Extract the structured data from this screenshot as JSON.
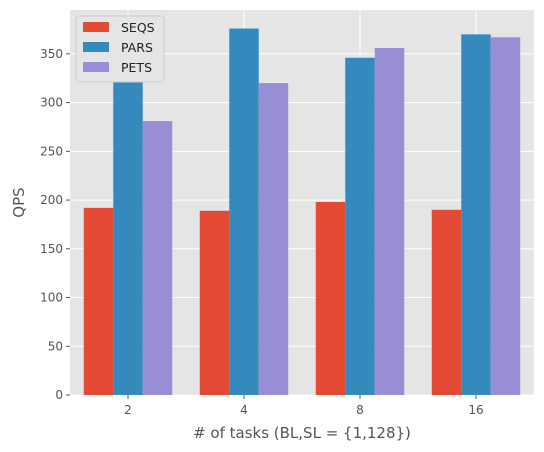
{
  "chart_data": {
    "type": "bar",
    "title": "",
    "xlabel": "# of tasks (BL,SL = {1,128})",
    "ylabel": "QPS",
    "categories": [
      "2",
      "4",
      "8",
      "16"
    ],
    "series": [
      {
        "name": "SEQS",
        "color": "#E24A33",
        "values": [
          192,
          189,
          198,
          190
        ]
      },
      {
        "name": "PARS",
        "color": "#348ABD",
        "values": [
          321,
          376,
          346,
          370
        ]
      },
      {
        "name": "PETS",
        "color": "#988ED5",
        "values": [
          281,
          320,
          356,
          367
        ]
      }
    ],
    "ylim": [
      0,
      395
    ],
    "yticks": [
      0,
      50,
      100,
      150,
      200,
      250,
      300,
      350
    ],
    "grid": true,
    "legend_position": "top-left",
    "style": {
      "plot_background": "#E5E5E5",
      "grid_color": "#FFFFFF",
      "text_color": "#555555"
    }
  }
}
